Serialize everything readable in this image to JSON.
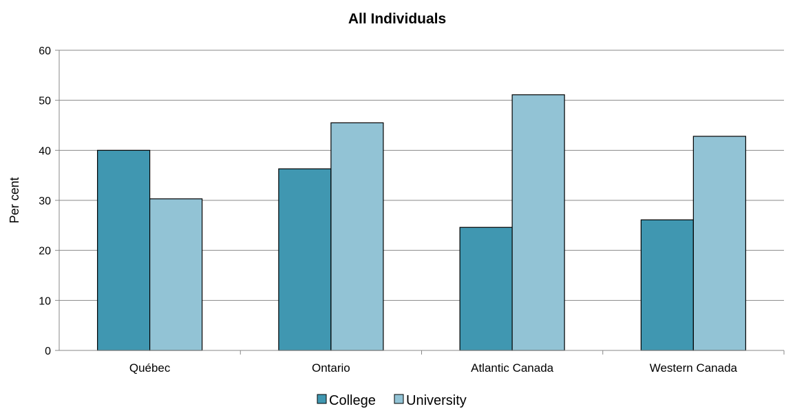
{
  "chart_data": {
    "type": "bar",
    "title": "All Individuals",
    "xlabel": "",
    "ylabel": "Per cent",
    "ylim": [
      0,
      60
    ],
    "yticks": [
      0,
      10,
      20,
      30,
      40,
      50,
      60
    ],
    "grid": true,
    "legend_position": "bottom",
    "categories": [
      "Québec",
      "Ontario",
      "Atlantic Canada",
      "Western Canada"
    ],
    "series": [
      {
        "name": "College",
        "color": "#4097b1",
        "values": [
          40.0,
          36.3,
          24.6,
          26.1
        ]
      },
      {
        "name": "University",
        "color": "#92c3d5",
        "values": [
          30.3,
          45.5,
          51.1,
          42.8
        ]
      }
    ]
  }
}
